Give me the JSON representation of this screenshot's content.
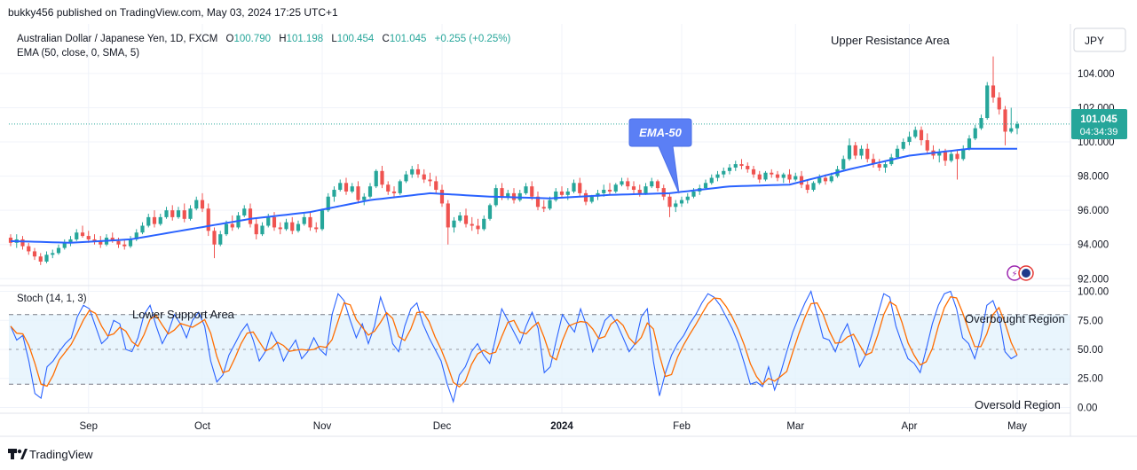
{
  "header": {
    "published": "bukky456 published on TradingView.com, May 03, 2024 17:25 UTC+1"
  },
  "legend": {
    "symbol_line": "Australian Dollar / Japanese Yen, 1D, FXCM",
    "ohlc": [
      {
        "label": "O",
        "value": "100.790"
      },
      {
        "label": "H",
        "value": "101.198"
      },
      {
        "label": "L",
        "value": "100.454"
      },
      {
        "label": "C",
        "value": "101.045"
      }
    ],
    "change": "+0.255 (+0.25%)",
    "ema_line": "EMA (50, close, 0, SMA, 5)",
    "stoch_line": "Stoch (14, 1, 3)"
  },
  "currency": "JPY",
  "price_badge": {
    "price": "101.045",
    "countdown": "04:34:39"
  },
  "annotations": {
    "upper_resistance": "Upper Resistance Area",
    "ema_callout": "EMA-50",
    "lower_support": "Lower Support Area",
    "overbought": "Overbought Region",
    "oversold": "Oversold Region"
  },
  "footer": {
    "brand": "TradingView"
  },
  "colors": {
    "up": "#26a69a",
    "down": "#ef5350",
    "ema": "#2962ff",
    "stoch_k": "#2962ff",
    "stoch_d": "#ff6d00",
    "band_fill": "#e3f2fd",
    "callout": "#5b7ff5"
  },
  "chart_data": [
    {
      "type": "candlestick",
      "title": "Australian Dollar / Japanese Yen, 1D, FXCM",
      "ylim": [
        91.6,
        106.9
      ],
      "y_ticks": [
        "104.000",
        "102.000",
        "100.000",
        "98.000",
        "96.000",
        "94.000",
        "92.000"
      ],
      "x_ticks": [
        "Sep",
        "Oct",
        "Nov",
        "Dec",
        "2024",
        "Feb",
        "Mar",
        "Apr",
        "May"
      ],
      "last_close": 101.045,
      "ohlc": [
        [
          94.4,
          94.6,
          93.9,
          94.1
        ],
        [
          94.1,
          94.6,
          93.8,
          94.3
        ],
        [
          94.3,
          94.5,
          93.7,
          93.9
        ],
        [
          93.9,
          94.1,
          93.4,
          93.6
        ],
        [
          93.6,
          93.8,
          93.1,
          93.3
        ],
        [
          93.3,
          93.5,
          92.8,
          93.0
        ],
        [
          93.0,
          93.6,
          92.9,
          93.4
        ],
        [
          93.4,
          93.7,
          93.2,
          93.5
        ],
        [
          93.5,
          94.0,
          93.4,
          93.8
        ],
        [
          93.8,
          94.3,
          93.7,
          94.1
        ],
        [
          94.1,
          94.5,
          93.9,
          94.3
        ],
        [
          94.3,
          94.9,
          94.2,
          94.7
        ],
        [
          94.7,
          95.1,
          94.4,
          94.5
        ],
        [
          94.5,
          94.8,
          94.1,
          94.3
        ],
        [
          94.3,
          94.6,
          94.0,
          94.2
        ],
        [
          94.2,
          94.5,
          93.8,
          94.0
        ],
        [
          94.0,
          94.6,
          93.9,
          94.4
        ],
        [
          94.4,
          94.7,
          94.1,
          94.2
        ],
        [
          94.2,
          94.4,
          93.8,
          94.0
        ],
        [
          94.0,
          94.3,
          93.7,
          93.9
        ],
        [
          93.9,
          94.5,
          93.8,
          94.3
        ],
        [
          94.3,
          94.9,
          94.2,
          94.7
        ],
        [
          94.7,
          95.3,
          94.6,
          95.1
        ],
        [
          95.1,
          95.8,
          95.0,
          95.6
        ],
        [
          95.6,
          96.0,
          95.0,
          95.2
        ],
        [
          95.2,
          95.8,
          95.1,
          95.6
        ],
        [
          95.6,
          96.2,
          95.5,
          96.0
        ],
        [
          96.0,
          96.3,
          95.4,
          95.6
        ],
        [
          95.6,
          96.2,
          95.5,
          96.0
        ],
        [
          96.0,
          96.4,
          95.3,
          95.5
        ],
        [
          95.5,
          96.3,
          95.4,
          96.1
        ],
        [
          96.1,
          96.8,
          96.0,
          96.6
        ],
        [
          96.6,
          97.0,
          95.9,
          96.1
        ],
        [
          96.1,
          96.4,
          94.5,
          94.8
        ],
        [
          94.8,
          95.0,
          93.2,
          94.0
        ],
        [
          94.0,
          94.8,
          93.9,
          94.6
        ],
        [
          94.6,
          95.4,
          94.5,
          95.2
        ],
        [
          95.2,
          95.7,
          94.8,
          95.0
        ],
        [
          95.0,
          95.9,
          94.9,
          95.7
        ],
        [
          95.7,
          96.3,
          95.6,
          96.1
        ],
        [
          96.1,
          96.4,
          95.0,
          95.2
        ],
        [
          95.2,
          95.5,
          94.3,
          94.6
        ],
        [
          94.6,
          95.3,
          94.5,
          95.1
        ],
        [
          95.1,
          95.8,
          95.0,
          95.6
        ],
        [
          95.6,
          95.9,
          94.8,
          95.0
        ],
        [
          95.0,
          95.3,
          94.6,
          94.9
        ],
        [
          94.9,
          95.5,
          94.8,
          95.3
        ],
        [
          95.3,
          95.6,
          94.6,
          94.8
        ],
        [
          94.8,
          95.4,
          94.7,
          95.2
        ],
        [
          95.2,
          95.8,
          95.1,
          95.6
        ],
        [
          95.6,
          95.9,
          94.8,
          95.0
        ],
        [
          95.0,
          95.3,
          94.7,
          94.9
        ],
        [
          94.9,
          96.1,
          94.8,
          96.0
        ],
        [
          96.0,
          97.0,
          95.9,
          96.8
        ],
        [
          96.8,
          97.4,
          96.5,
          97.2
        ],
        [
          97.2,
          97.8,
          97.1,
          97.6
        ],
        [
          97.6,
          97.9,
          96.9,
          97.1
        ],
        [
          97.1,
          97.6,
          97.0,
          97.4
        ],
        [
          97.4,
          97.7,
          96.4,
          96.6
        ],
        [
          96.6,
          97.0,
          96.3,
          96.8
        ],
        [
          96.8,
          97.6,
          96.7,
          97.4
        ],
        [
          97.4,
          98.4,
          97.3,
          98.3
        ],
        [
          98.3,
          98.6,
          97.3,
          97.5
        ],
        [
          97.5,
          97.7,
          96.9,
          97.1
        ],
        [
          97.1,
          97.4,
          96.7,
          97.0
        ],
        [
          97.0,
          97.8,
          96.9,
          97.7
        ],
        [
          97.7,
          98.3,
          97.6,
          98.1
        ],
        [
          98.1,
          98.6,
          97.9,
          98.4
        ],
        [
          98.4,
          98.7,
          97.9,
          98.1
        ],
        [
          98.1,
          98.4,
          97.6,
          97.8
        ],
        [
          97.8,
          98.2,
          97.4,
          97.7
        ],
        [
          97.7,
          98.0,
          97.0,
          97.2
        ],
        [
          97.2,
          97.5,
          96.2,
          96.4
        ],
        [
          96.4,
          96.6,
          94.0,
          95.0
        ],
        [
          95.0,
          95.6,
          94.7,
          95.4
        ],
        [
          95.4,
          95.9,
          95.3,
          95.7
        ],
        [
          95.7,
          96.1,
          95.0,
          95.2
        ],
        [
          95.2,
          95.6,
          94.8,
          95.1
        ],
        [
          95.1,
          95.5,
          94.6,
          94.9
        ],
        [
          94.9,
          95.7,
          94.8,
          95.5
        ],
        [
          95.5,
          96.4,
          95.4,
          96.3
        ],
        [
          96.3,
          97.5,
          96.2,
          97.3
        ],
        [
          97.3,
          97.6,
          96.6,
          96.8
        ],
        [
          96.8,
          97.2,
          96.6,
          97.0
        ],
        [
          97.0,
          97.3,
          96.4,
          96.6
        ],
        [
          96.6,
          97.2,
          96.5,
          97.0
        ],
        [
          97.0,
          97.6,
          96.9,
          97.4
        ],
        [
          97.4,
          97.7,
          96.6,
          96.8
        ],
        [
          96.8,
          97.1,
          96.0,
          96.2
        ],
        [
          96.2,
          96.6,
          95.9,
          96.1
        ],
        [
          96.1,
          96.8,
          96.0,
          96.6
        ],
        [
          96.6,
          97.3,
          96.5,
          97.1
        ],
        [
          97.1,
          97.4,
          96.7,
          96.9
        ],
        [
          96.9,
          97.3,
          96.6,
          97.1
        ],
        [
          97.1,
          97.8,
          97.0,
          97.6
        ],
        [
          97.6,
          97.9,
          96.8,
          97.0
        ],
        [
          97.0,
          97.2,
          96.3,
          96.5
        ],
        [
          96.5,
          96.9,
          96.4,
          96.8
        ],
        [
          96.8,
          97.2,
          96.6,
          97.0
        ],
        [
          97.0,
          97.5,
          96.8,
          97.2
        ],
        [
          97.2,
          97.6,
          96.9,
          97.1
        ],
        [
          97.1,
          97.6,
          97.0,
          97.5
        ],
        [
          97.5,
          97.9,
          97.4,
          97.7
        ],
        [
          97.7,
          97.9,
          97.2,
          97.4
        ],
        [
          97.4,
          97.7,
          97.0,
          97.2
        ],
        [
          97.2,
          97.5,
          96.8,
          97.0
        ],
        [
          97.0,
          97.6,
          96.9,
          97.4
        ],
        [
          97.4,
          97.9,
          97.3,
          97.7
        ],
        [
          97.7,
          97.8,
          97.1,
          97.3
        ],
        [
          97.3,
          97.5,
          96.6,
          96.8
        ],
        [
          96.8,
          97.0,
          95.6,
          96.2
        ],
        [
          96.2,
          96.6,
          95.9,
          96.4
        ],
        [
          96.4,
          96.8,
          96.2,
          96.6
        ],
        [
          96.6,
          97.0,
          96.4,
          96.8
        ],
        [
          96.8,
          97.3,
          96.7,
          97.1
        ],
        [
          97.1,
          97.5,
          96.9,
          97.3
        ],
        [
          97.3,
          97.8,
          97.2,
          97.6
        ],
        [
          97.6,
          98.1,
          97.5,
          97.9
        ],
        [
          97.9,
          98.3,
          97.7,
          98.1
        ],
        [
          98.1,
          98.5,
          97.9,
          98.3
        ],
        [
          98.3,
          98.7,
          98.1,
          98.5
        ],
        [
          98.5,
          98.9,
          98.3,
          98.7
        ],
        [
          98.7,
          99.0,
          98.4,
          98.6
        ],
        [
          98.6,
          98.8,
          98.2,
          98.4
        ],
        [
          98.4,
          98.6,
          97.9,
          98.1
        ],
        [
          98.1,
          98.3,
          97.6,
          97.8
        ],
        [
          97.8,
          98.3,
          97.7,
          98.2
        ],
        [
          98.2,
          98.4,
          97.9,
          98.1
        ],
        [
          98.1,
          98.3,
          97.7,
          97.9
        ],
        [
          97.9,
          98.2,
          97.6,
          98.1
        ],
        [
          98.1,
          98.4,
          97.6,
          97.8
        ],
        [
          97.8,
          98.2,
          97.7,
          98.0
        ],
        [
          98.0,
          98.3,
          97.3,
          97.5
        ],
        [
          97.5,
          97.8,
          97.0,
          97.2
        ],
        [
          97.2,
          97.7,
          97.1,
          97.6
        ],
        [
          97.6,
          98.1,
          97.5,
          97.9
        ],
        [
          97.9,
          98.1,
          97.5,
          97.7
        ],
        [
          97.7,
          98.2,
          97.6,
          98.0
        ],
        [
          98.0,
          98.6,
          97.9,
          98.4
        ],
        [
          98.4,
          99.2,
          98.3,
          99.0
        ],
        [
          99.0,
          100.2,
          98.9,
          99.8
        ],
        [
          99.8,
          100.0,
          99.0,
          99.2
        ],
        [
          99.2,
          99.8,
          99.0,
          99.6
        ],
        [
          99.6,
          99.9,
          98.8,
          99.0
        ],
        [
          99.0,
          99.3,
          98.5,
          98.7
        ],
        [
          98.7,
          99.0,
          98.3,
          98.5
        ],
        [
          98.5,
          98.9,
          98.2,
          98.7
        ],
        [
          98.7,
          99.3,
          98.6,
          99.1
        ],
        [
          99.1,
          99.8,
          99.0,
          99.6
        ],
        [
          99.6,
          100.2,
          99.5,
          100.0
        ],
        [
          100.0,
          100.6,
          99.8,
          100.3
        ],
        [
          100.3,
          100.9,
          100.2,
          100.7
        ],
        [
          100.7,
          100.9,
          99.8,
          100.1
        ],
        [
          100.1,
          100.5,
          99.3,
          99.5
        ],
        [
          99.5,
          99.8,
          99.0,
          99.2
        ],
        [
          99.2,
          99.6,
          98.8,
          99.4
        ],
        [
          99.4,
          99.6,
          98.6,
          98.9
        ],
        [
          98.9,
          99.5,
          98.8,
          99.3
        ],
        [
          99.3,
          99.5,
          97.8,
          99.0
        ],
        [
          99.0,
          99.8,
          98.9,
          99.6
        ],
        [
          99.6,
          100.4,
          99.5,
          100.2
        ],
        [
          100.2,
          101.0,
          100.1,
          100.8
        ],
        [
          100.8,
          101.6,
          100.7,
          101.4
        ],
        [
          101.4,
          103.5,
          101.3,
          103.3
        ],
        [
          103.3,
          105.0,
          102.3,
          102.6
        ],
        [
          102.6,
          102.9,
          101.6,
          101.9
        ],
        [
          101.9,
          102.1,
          99.8,
          100.6
        ],
        [
          100.6,
          102.0,
          100.5,
          100.8
        ],
        [
          100.8,
          101.2,
          100.45,
          101.045
        ]
      ],
      "ema": {
        "name": "EMA (50, close, 0, SMA, 5)",
        "values_sampled_every_10_bars": [
          94.2,
          94.1,
          94.3,
          94.9,
          95.5,
          95.9,
          96.6,
          97.0,
          96.8,
          96.7,
          96.9,
          97.0,
          97.4,
          97.5,
          98.4,
          99.2,
          99.6
        ]
      }
    },
    {
      "type": "line",
      "title": "Stoch (14, 1, 3)",
      "ylim": [
        -5,
        105
      ],
      "y_ticks": [
        "100.00",
        "75.00",
        "50.00",
        "25.00",
        "0.00"
      ],
      "bands": {
        "upper": 80,
        "middle": 50,
        "lower": 20
      },
      "series": [
        {
          "name": "%K",
          "values": [
            70,
            58,
            62,
            40,
            12,
            8,
            35,
            40,
            48,
            55,
            60,
            78,
            88,
            85,
            70,
            55,
            60,
            75,
            72,
            50,
            48,
            60,
            80,
            88,
            70,
            55,
            65,
            80,
            72,
            60,
            75,
            82,
            70,
            40,
            22,
            28,
            45,
            55,
            65,
            72,
            58,
            40,
            48,
            65,
            55,
            40,
            50,
            58,
            42,
            48,
            60,
            50,
            45,
            80,
            98,
            92,
            75,
            60,
            72,
            55,
            70,
            95,
            80,
            55,
            48,
            70,
            85,
            90,
            72,
            60,
            50,
            40,
            20,
            5,
            28,
            35,
            48,
            55,
            45,
            38,
            60,
            85,
            75,
            65,
            55,
            70,
            82,
            68,
            30,
            35,
            58,
            80,
            72,
            65,
            85,
            70,
            48,
            60,
            75,
            80,
            72,
            60,
            48,
            55,
            78,
            85,
            40,
            10,
            30,
            45,
            55,
            62,
            72,
            80,
            90,
            98,
            95,
            88,
            78,
            68,
            55,
            38,
            20,
            22,
            18,
            35,
            15,
            30,
            48,
            65,
            78,
            90,
            100,
            80,
            60,
            58,
            48,
            62,
            72,
            55,
            35,
            45,
            62,
            80,
            98,
            95,
            70,
            55,
            42,
            38,
            30,
            50,
            72,
            88,
            98,
            100,
            85,
            60,
            55,
            42,
            60,
            88,
            92,
            78,
            48,
            42,
            45
          ]
        },
        {
          "name": "%D",
          "values_note": "3-period moving average of %K"
        }
      ]
    }
  ]
}
